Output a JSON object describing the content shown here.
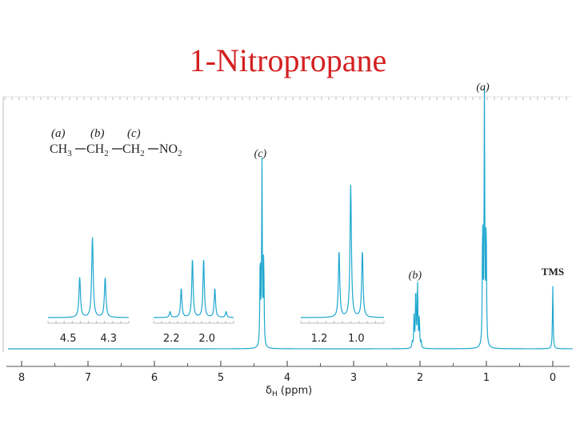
{
  "title": "1-Nitropropane",
  "colors": {
    "title": "#d42020",
    "spectrum": "#1ea7cf",
    "axis": "#555555",
    "frame": "#bbbbbb"
  },
  "structure": {
    "labels": [
      "(a)",
      "(b)",
      "(c)"
    ],
    "groups": [
      "CH",
      "3",
      "CH",
      "2",
      "CH",
      "2",
      "NO",
      "2"
    ]
  },
  "chart_data": {
    "type": "line",
    "title": "1-Nitropropane",
    "xlabel": "δH (ppm)",
    "xlabel_main": "δ",
    "xlabel_sub": "H",
    "xlabel_unit": " (ppm)",
    "xlim": [
      8.0,
      0.0
    ],
    "x_reversed": true,
    "ticks": [
      8,
      7,
      6,
      5,
      4,
      3,
      2,
      1,
      0
    ],
    "tick_labels": [
      "8",
      "7",
      "6",
      "5",
      "4",
      "3",
      "2",
      "1",
      "0"
    ],
    "grid": false,
    "peaks": [
      {
        "label": "(c)",
        "shift": 4.38,
        "multiplicity": "triplet",
        "height": 0.5
      },
      {
        "label": "(b)",
        "shift": 2.05,
        "multiplicity": "sextet",
        "height": 0.17
      },
      {
        "label": "(a)",
        "shift": 1.03,
        "multiplicity": "triplet",
        "height": 0.68
      },
      {
        "label": "TMS",
        "shift": 0.0,
        "multiplicity": "singlet",
        "height": 0.17
      }
    ],
    "insets": [
      {
        "ticks": [
          4.5,
          4.3
        ],
        "tick_labels": [
          "4.5",
          "4.3"
        ],
        "xlim": [
          4.6,
          4.2
        ]
      },
      {
        "ticks": [
          2.2,
          2.0
        ],
        "tick_labels": [
          "2.2",
          "2.0"
        ],
        "xlim": [
          2.3,
          1.85
        ]
      },
      {
        "ticks": [
          1.2,
          1.0
        ],
        "tick_labels": [
          "1.2",
          "1.0"
        ],
        "xlim": [
          1.3,
          0.85
        ]
      }
    ]
  }
}
